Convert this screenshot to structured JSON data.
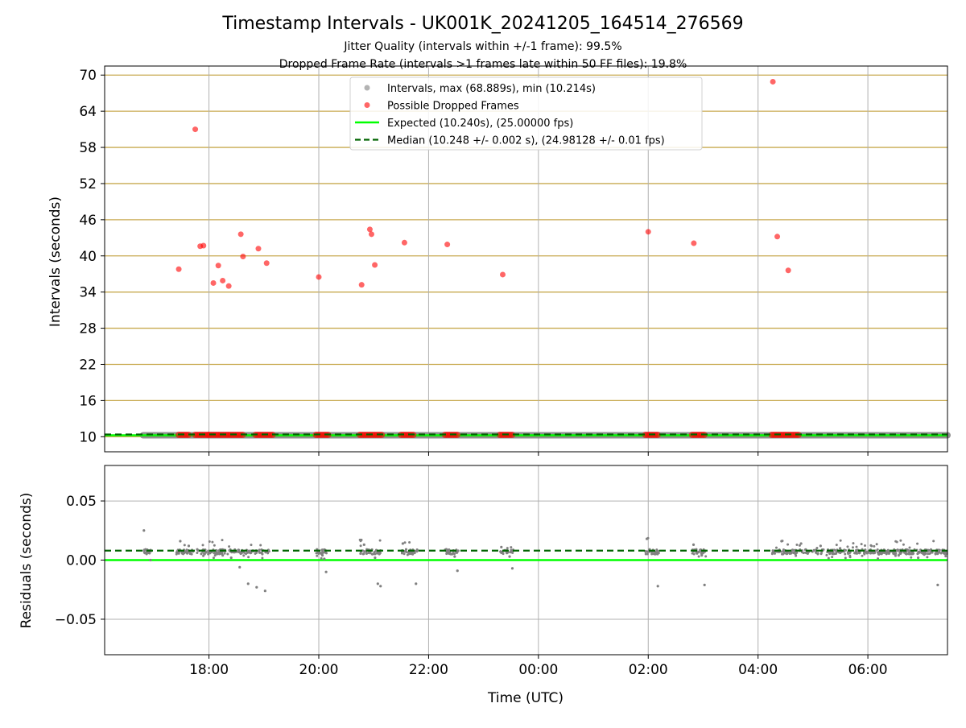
{
  "figure": {
    "title": "Timestamp Intervals - UK001K_20241205_164514_276569",
    "subtitle1": "Jitter Quality (intervals within +/-1 frame): 99.5%",
    "subtitle2": "Dropped Frame Rate (intervals >1 frames late within 50 FF files): 19.8%"
  },
  "colors": {
    "dropped": "#ff0000",
    "intervals": "#808080",
    "expected": "#00ff00",
    "median": "#006400",
    "hgrid": "#c8aa50",
    "vgrid": "#b0b0b0"
  },
  "chart_data": [
    {
      "type": "scatter",
      "ylabel": "Intervals (seconds)",
      "xlabel": "",
      "ylim": [
        7.5,
        71.5
      ],
      "yticks": [
        10,
        16,
        22,
        28,
        34,
        40,
        46,
        52,
        58,
        64,
        70
      ],
      "xlim_hours": [
        16.1,
        31.45
      ],
      "xticks": [
        {
          "h": 18,
          "label": "18:00"
        },
        {
          "h": 20,
          "label": "20:00"
        },
        {
          "h": 22,
          "label": "22:00"
        },
        {
          "h": 24,
          "label": "00:00"
        },
        {
          "h": 26,
          "label": "02:00"
        },
        {
          "h": 28,
          "label": "04:00"
        },
        {
          "h": 30,
          "label": "06:00"
        }
      ],
      "grid": "horizontal and vertical",
      "legend_position": "top-center",
      "legend": [
        {
          "label": "Intervals, max (68.889s), min (10.214s)",
          "kind": "intervals"
        },
        {
          "label": "Possible Dropped Frames",
          "kind": "dropped"
        },
        {
          "label": "Expected (10.240s), (25.00000 fps)",
          "kind": "expected"
        },
        {
          "label": "Median (10.248 +/- 0.002 s), (24.98128 +/- 0.01 fps)",
          "kind": "median"
        }
      ],
      "series": [
        {
          "name": "Intervals, max (68.889s), min (10.214s)",
          "ranges_hours": [
            [
              16.8,
              31.45
            ]
          ],
          "value": 10.24
        },
        {
          "name": "Possible Dropped Frames",
          "clusters_hours": [
            [
              17.45,
              17.65
            ],
            [
              17.75,
              18.0
            ],
            [
              18.0,
              18.35
            ],
            [
              18.35,
              18.65
            ],
            [
              18.85,
              19.2
            ],
            [
              19.95,
              20.2
            ],
            [
              20.75,
              21.15
            ],
            [
              21.5,
              21.75
            ],
            [
              22.3,
              22.55
            ],
            [
              23.3,
              23.55
            ],
            [
              25.95,
              26.2
            ],
            [
              26.8,
              27.05
            ],
            [
              28.25,
              28.75
            ]
          ],
          "points": [
            {
              "x": 17.45,
              "y": 37.8
            },
            {
              "x": 17.75,
              "y": 61.0
            },
            {
              "x": 17.84,
              "y": 41.6
            },
            {
              "x": 17.9,
              "y": 41.7
            },
            {
              "x": 18.08,
              "y": 35.5
            },
            {
              "x": 18.17,
              "y": 38.4
            },
            {
              "x": 18.25,
              "y": 35.9
            },
            {
              "x": 18.36,
              "y": 35.0
            },
            {
              "x": 18.58,
              "y": 43.6
            },
            {
              "x": 18.62,
              "y": 39.9
            },
            {
              "x": 18.9,
              "y": 41.2
            },
            {
              "x": 19.05,
              "y": 38.8
            },
            {
              "x": 20.0,
              "y": 36.5
            },
            {
              "x": 20.78,
              "y": 35.2
            },
            {
              "x": 20.93,
              "y": 44.4
            },
            {
              "x": 20.96,
              "y": 43.6
            },
            {
              "x": 21.02,
              "y": 38.5
            },
            {
              "x": 21.56,
              "y": 42.2
            },
            {
              "x": 22.34,
              "y": 41.9
            },
            {
              "x": 23.35,
              "y": 36.9
            },
            {
              "x": 26.0,
              "y": 44.0
            },
            {
              "x": 26.83,
              "y": 42.1
            },
            {
              "x": 28.27,
              "y": 68.9
            },
            {
              "x": 28.35,
              "y": 43.2
            },
            {
              "x": 28.55,
              "y": 37.6
            }
          ]
        },
        {
          "name": "Expected (10.240s), (25.00000 fps)",
          "value": 10.24
        },
        {
          "name": "Median (10.248 +/- 0.002 s), (24.98128 +/- 0.01 fps)",
          "value": 10.248
        }
      ]
    },
    {
      "type": "scatter",
      "ylabel": "Residuals (seconds)",
      "xlabel": "Time (UTC)",
      "ylim": [
        -0.08,
        0.08
      ],
      "yticks": [
        {
          "v": 0.05,
          "label": "0.05"
        },
        {
          "v": 0.0,
          "label": "0.00"
        },
        {
          "v": -0.05,
          "label": "−0.05"
        }
      ],
      "xlim_hours": [
        16.1,
        31.45
      ],
      "xticks": [
        {
          "h": 18,
          "label": "18:00"
        },
        {
          "h": 20,
          "label": "20:00"
        },
        {
          "h": 22,
          "label": "22:00"
        },
        {
          "h": 24,
          "label": "00:00"
        },
        {
          "h": 26,
          "label": "02:00"
        },
        {
          "h": 28,
          "label": "04:00"
        },
        {
          "h": 30,
          "label": "06:00"
        }
      ],
      "grid": "horizontal and vertical",
      "expected_residual": 0.0,
      "median_residual": 0.008,
      "residual_groups": [
        {
          "x_from": 16.8,
          "x_to": 16.95,
          "y": [
            0.025,
            0.009,
            0.007,
            0.008,
            0.0
          ]
        },
        {
          "x_from": 17.4,
          "x_to": 19.1,
          "y": [
            0.016,
            0.012,
            0.009,
            0.007,
            0.006,
            0.004,
            0.002,
            -0.006,
            -0.02,
            -0.023,
            -0.026
          ]
        },
        {
          "x_from": 19.95,
          "x_to": 20.15,
          "y": [
            0.009,
            0.007,
            0.006,
            0.004,
            0.001,
            -0.01
          ]
        },
        {
          "x_from": 20.75,
          "x_to": 21.15,
          "y": [
            0.017,
            0.013,
            0.009,
            0.007,
            0.005,
            0.002,
            -0.02,
            -0.022
          ]
        },
        {
          "x_from": 21.5,
          "x_to": 21.8,
          "y": [
            0.014,
            0.009,
            0.007,
            0.005,
            -0.02
          ]
        },
        {
          "x_from": 22.3,
          "x_to": 22.55,
          "y": [
            0.009,
            0.007,
            0.005,
            0.003,
            -0.009
          ]
        },
        {
          "x_from": 23.3,
          "x_to": 23.55,
          "y": [
            0.011,
            0.008,
            0.006,
            0.003,
            -0.007
          ]
        },
        {
          "x_from": 25.95,
          "x_to": 26.2,
          "y": [
            0.018,
            0.009,
            0.007,
            0.005,
            -0.022
          ]
        },
        {
          "x_from": 26.8,
          "x_to": 27.05,
          "y": [
            0.013,
            0.009,
            0.007,
            0.004,
            -0.021
          ]
        },
        {
          "x_from": 28.25,
          "x_to": 31.45,
          "y": [
            0.016,
            0.014,
            0.012,
            0.01,
            0.008,
            0.006,
            0.004,
            0.002,
            -0.021
          ]
        }
      ]
    }
  ]
}
